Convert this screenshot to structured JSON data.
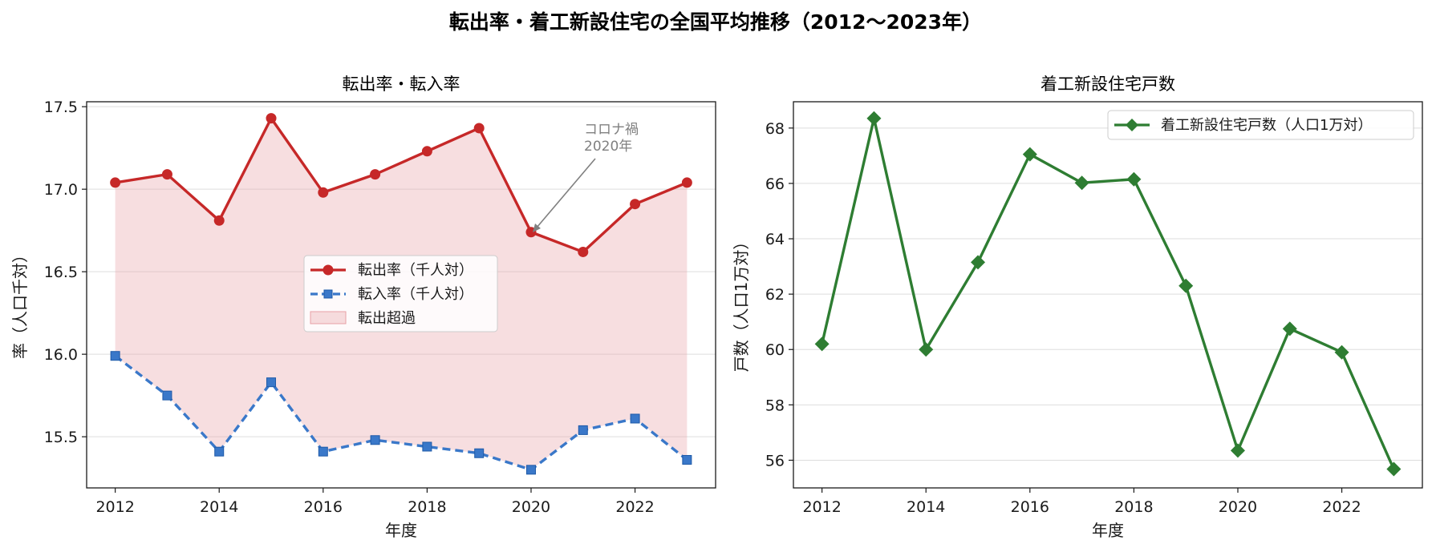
{
  "figure": {
    "title": "転出率・着工新設住宅の全国平均推移（2012〜2023年）"
  },
  "chart_data": [
    {
      "type": "line",
      "title": "転出率・転入率",
      "xlabel": "年度",
      "ylabel": "率（人口千対）",
      "x": [
        2012,
        2013,
        2014,
        2015,
        2016,
        2017,
        2018,
        2019,
        2020,
        2021,
        2022,
        2023
      ],
      "xticks": [
        2012,
        2014,
        2016,
        2018,
        2020,
        2022
      ],
      "yticks": [
        15.5,
        16.0,
        16.5,
        17.0,
        17.5
      ],
      "xlim": [
        2011.45,
        2023.55
      ],
      "ylim": [
        15.19,
        17.53
      ],
      "grid": "horizontal",
      "legend_position": "center",
      "series": [
        {
          "name": "転出率（千人対）",
          "color": "#c62828",
          "marker": "circle",
          "linestyle": "solid",
          "values": [
            17.04,
            17.09,
            16.81,
            17.43,
            16.98,
            17.09,
            17.23,
            17.37,
            16.74,
            16.62,
            16.91,
            17.04
          ]
        },
        {
          "name": "転入率（千人対）",
          "color": "#3a78c9",
          "marker": "square",
          "linestyle": "dashed",
          "values": [
            15.99,
            15.75,
            15.41,
            15.83,
            15.41,
            15.48,
            15.44,
            15.4,
            15.3,
            15.54,
            15.61,
            15.36
          ]
        }
      ],
      "fill": {
        "name": "転出超過",
        "color": "#e8a0a6"
      },
      "annotation": {
        "lines": [
          "コロナ禍",
          "2020年"
        ],
        "x": 2020,
        "y": 16.74,
        "text_x": 2021.0,
        "text_y": 17.32
      }
    },
    {
      "type": "line",
      "title": "着工新設住宅戸数",
      "xlabel": "年度",
      "ylabel": "戸数（人口1万対）",
      "x": [
        2012,
        2013,
        2014,
        2015,
        2016,
        2017,
        2018,
        2019,
        2020,
        2021,
        2022,
        2023
      ],
      "xticks": [
        2012,
        2014,
        2016,
        2018,
        2020,
        2022
      ],
      "yticks": [
        56,
        58,
        60,
        62,
        64,
        66,
        68
      ],
      "xlim": [
        2011.45,
        2023.55
      ],
      "ylim": [
        55.0,
        68.95
      ],
      "grid": "horizontal",
      "legend_position": "upper right",
      "series": [
        {
          "name": "着工新設住宅戸数（人口1万対）",
          "color": "#2e7d32",
          "marker": "diamond",
          "linestyle": "solid",
          "values": [
            60.2,
            68.35,
            60.0,
            63.15,
            67.05,
            66.02,
            66.15,
            62.3,
            56.35,
            60.75,
            59.9,
            55.68
          ]
        }
      ]
    }
  ]
}
